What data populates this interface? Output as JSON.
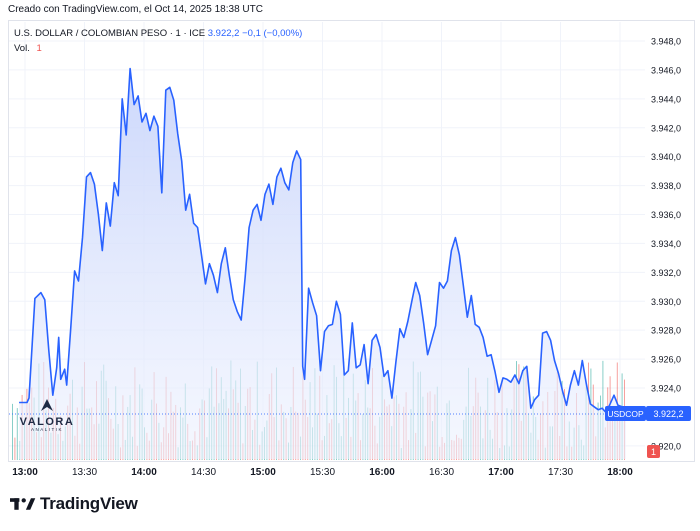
{
  "credit": "Creado con TradingView.com, el Oct 14, 2025 18:38 UTC",
  "legend": {
    "symbol": "U.S. DOLLAR / COLOMBIAN PESO · 1 · ICE",
    "price": "3.922,2",
    "change": "−0,1 (−0,00%)"
  },
  "volume_legend": {
    "label": "Vol.",
    "value": "1"
  },
  "price_tag": {
    "symbol": "USDCOP",
    "value": "3.922,2"
  },
  "volume_tag": "1",
  "watermark": {
    "name": "VALORA",
    "sub": "ANALITIK"
  },
  "footer": {
    "brand": "TradingView"
  },
  "colors": {
    "line": "#2962ff",
    "fill_top": "#c9d5fb",
    "up_volume": "#26a69a",
    "down_volume": "#ef5350",
    "grid": "#f0f3fa"
  },
  "chart_data": {
    "type": "area",
    "title": "U.S. DOLLAR / COLOMBIAN PESO · 1 · ICE",
    "ylim": [
      3919,
      3949
    ],
    "yticks": [
      "3.948,0",
      "3.946,0",
      "3.944,0",
      "3.942,0",
      "3.940,0",
      "3.938,0",
      "3.936,0",
      "3.934,0",
      "3.932,0",
      "3.930,0",
      "3.928,0",
      "3.926,0",
      "3.924,0",
      "3.920,0"
    ],
    "ytick_values": [
      3948,
      3946,
      3944,
      3942,
      3940,
      3938,
      3936,
      3934,
      3932,
      3930,
      3928,
      3926,
      3924,
      3920
    ],
    "xticks": [
      "13:00",
      "13:30",
      "14:00",
      "14:30",
      "15:00",
      "15:30",
      "16:00",
      "16:30",
      "17:00",
      "17:30",
      "18:00"
    ],
    "xtick_minutes": [
      780,
      810,
      840,
      870,
      900,
      930,
      960,
      990,
      1020,
      1050,
      1080
    ],
    "xlim_minutes": [
      777,
      1085
    ],
    "series": [
      {
        "name": "USDCOP",
        "x": [
          777,
          781,
          782,
          785,
          788,
          790,
          792,
          794,
          796,
          797,
          798,
          800,
          801,
          803,
          805,
          807,
          809,
          811,
          813,
          815,
          817,
          819,
          821,
          823,
          825,
          827,
          829,
          831,
          833,
          835,
          837,
          839,
          841,
          843,
          845,
          847,
          849,
          851,
          853,
          855,
          857,
          859,
          861,
          863,
          865,
          867,
          869,
          871,
          873,
          875,
          877,
          879,
          881,
          883,
          885,
          887,
          889,
          891,
          893,
          895,
          897,
          899,
          901,
          903,
          905,
          907,
          909,
          911,
          913,
          915,
          917,
          919,
          920,
          921,
          923,
          925,
          927,
          929,
          931,
          933,
          935,
          937,
          939,
          941,
          943,
          945,
          947,
          949,
          951,
          953,
          955,
          957,
          959,
          961,
          963,
          965,
          967,
          969,
          971,
          973,
          975,
          977,
          979,
          981,
          983,
          985,
          987,
          989,
          991,
          993,
          995,
          997,
          999,
          1001,
          1003,
          1005,
          1007,
          1009,
          1011,
          1013,
          1015,
          1017,
          1019,
          1021,
          1023,
          1025,
          1027,
          1029,
          1031,
          1033,
          1035,
          1037,
          1039,
          1041,
          1043,
          1045,
          1047,
          1049,
          1051,
          1053,
          1055,
          1057,
          1059,
          1061,
          1063,
          1065,
          1067,
          1069,
          1071,
          1073,
          1075,
          1077,
          1079,
          1081,
          1083
        ],
        "y": [
          3923,
          3923,
          3923.3,
          3930.2,
          3930.6,
          3930.1,
          3926.6,
          3923.5,
          3925.4,
          3927.5,
          3924.6,
          3925.3,
          3924.2,
          3928,
          3932.1,
          3931.4,
          3934.4,
          3938.6,
          3938.9,
          3938.1,
          3936,
          3933.5,
          3936.8,
          3935.2,
          3938.2,
          3937.3,
          3944,
          3941.5,
          3946.1,
          3943.6,
          3944.2,
          3942.4,
          3943,
          3941.8,
          3942.8,
          3942.1,
          3937.5,
          3944.6,
          3944.8,
          3943.9,
          3941.6,
          3939.7,
          3936.3,
          3937.4,
          3935.4,
          3935.1,
          3933.2,
          3931.2,
          3932.6,
          3931.8,
          3930.6,
          3932.6,
          3933.7,
          3931.8,
          3930.1,
          3929.3,
          3928.7,
          3931.7,
          3935.1,
          3936.3,
          3936.7,
          3935.6,
          3937.4,
          3938.1,
          3936.7,
          3938.6,
          3939.2,
          3938.2,
          3937.7,
          3939.6,
          3940.4,
          3939.8,
          3925.5,
          3924.6,
          3930.9,
          3929.9,
          3929,
          3925.2,
          3927.9,
          3928.3,
          3928.4,
          3930,
          3929.1,
          3924.9,
          3925.2,
          3928.5,
          3925.4,
          3925.6,
          3927,
          3924.3,
          3927.3,
          3927.7,
          3926.8,
          3924.8,
          3925.2,
          3923.3,
          3925.8,
          3928.1,
          3927.5,
          3928.6,
          3930,
          3931.3,
          3930.4,
          3928.5,
          3926.3,
          3927.3,
          3928.3,
          3931.3,
          3930.9,
          3931.4,
          3933.5,
          3934.4,
          3933.2,
          3931.1,
          3928.9,
          3930.4,
          3928.4,
          3928.2,
          3927.5,
          3926.2,
          3926.3,
          3925.1,
          3923.7,
          3924.7,
          3924.6,
          3924.4,
          3924.9,
          3924.3,
          3925.2,
          3925.5,
          3922.6,
          3923.2,
          3923.5,
          3927.8,
          3927.9,
          3927.3,
          3925.9,
          3925,
          3923.8,
          3922.8,
          3924.2,
          3925.2,
          3924.2,
          3925.9,
          3924.3,
          3922.9,
          3922.7,
          3922.5,
          3922.6,
          3922.3,
          3922.9,
          3923.5,
          3922.8,
          3922.7,
          3922.2
        ]
      }
    ]
  }
}
